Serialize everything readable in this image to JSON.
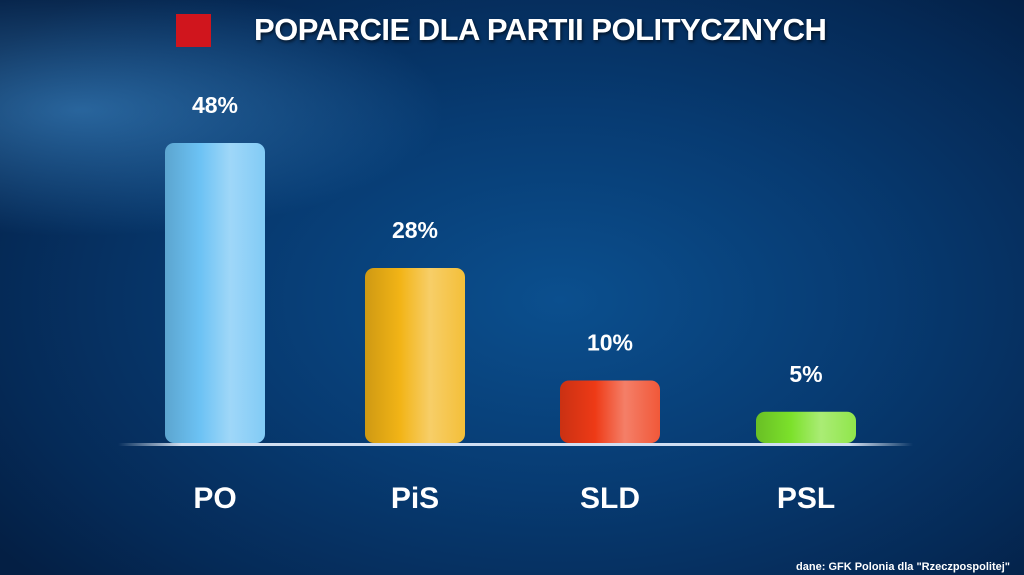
{
  "header": {
    "title": "POPARCIE DLA PARTII POLITYCZNYCH",
    "accent_color": "#d0151d"
  },
  "source": "dane: GFK Polonia dla \"Rzeczpospolitej\"",
  "chart_data": {
    "type": "bar",
    "title": "POPARCIE DLA PARTII POLITYCZNYCH",
    "categories": [
      "PO",
      "PiS",
      "SLD",
      "PSL"
    ],
    "values": [
      48,
      28,
      10,
      5
    ],
    "value_labels": [
      "48%",
      "28%",
      "10%",
      "5%"
    ],
    "unit": "%",
    "colors": [
      "#6cc2f4",
      "#f2b416",
      "#ee3a16",
      "#7ce12b"
    ],
    "ylim": [
      0,
      48
    ],
    "grid": false,
    "legend": "none"
  }
}
